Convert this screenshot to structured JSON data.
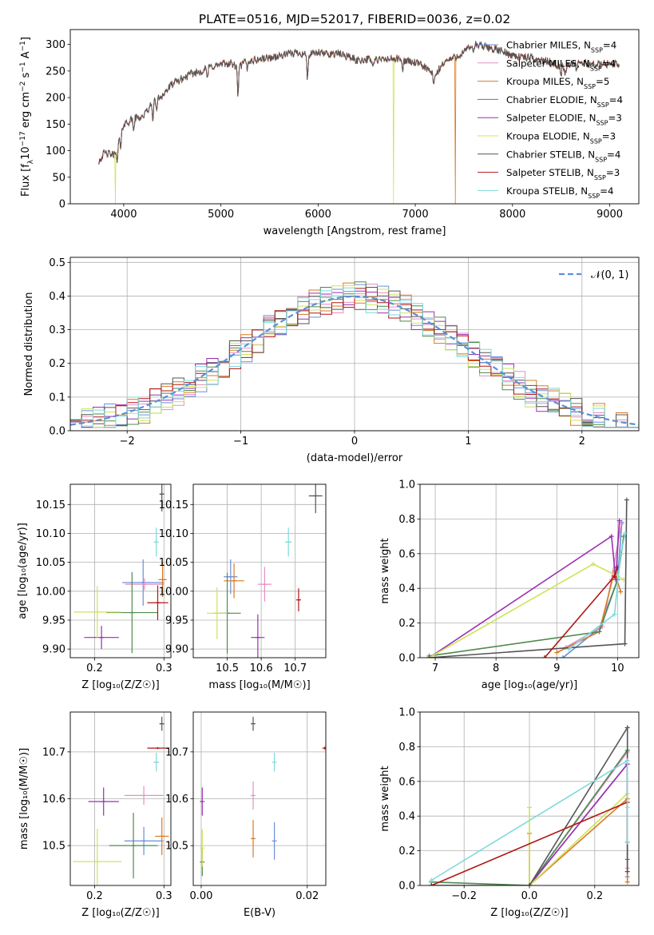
{
  "figure_title": "PLATE=0516, MJD=52017, FIBERID=0036, z=0.02",
  "models": [
    {
      "label": "Chabrier MILES, N",
      "sub": "SSP",
      "tail": "=4",
      "color": "#6a8fd6"
    },
    {
      "label": "Salpeter MILES, N",
      "sub": "SSP",
      "tail": "=4",
      "color": "#e58fc3"
    },
    {
      "label": "Kroupa MILES, N",
      "sub": "SSP",
      "tail": "=5",
      "color": "#d97a22"
    },
    {
      "label": "Chabrier ELODIE, N",
      "sub": "SSP",
      "tail": "=4",
      "color": "#4f8a4f"
    },
    {
      "label": "Salpeter ELODIE, N",
      "sub": "SSP",
      "tail": "=3",
      "color": "#9b2fb0"
    },
    {
      "label": "Kroupa ELODIE, N",
      "sub": "SSP",
      "tail": "=3",
      "color": "#cfe35a"
    },
    {
      "label": "Chabrier STELIB, N",
      "sub": "SSP",
      "tail": "=4",
      "color": "#555555"
    },
    {
      "label": "Salpeter STELIB, N",
      "sub": "SSP",
      "tail": "=3",
      "color": "#b01616"
    },
    {
      "label": "Kroupa STELIB, N",
      "sub": "SSP",
      "tail": "=4",
      "color": "#7fd9dc"
    }
  ],
  "chart_data": [
    {
      "id": "spectrum",
      "type": "line",
      "title": "PLATE=0516, MJD=52017, FIBERID=0036, z=0.02",
      "xlabel": "wavelength [Angstrom, rest frame]",
      "ylabel_parts": [
        "Flux [f",
        "λ",
        "10",
        "−17",
        " erg cm",
        "−2",
        " s",
        "−1",
        " A",
        "−1",
        "]"
      ],
      "xlim": [
        3450,
        9300
      ],
      "ylim": [
        0,
        328
      ],
      "xticks": [
        4000,
        5000,
        6000,
        7000,
        8000,
        9000
      ],
      "yticks": [
        0,
        50,
        100,
        150,
        200,
        250,
        300
      ],
      "continuum": [
        [
          3740,
          80
        ],
        [
          3800,
          95
        ],
        [
          3900,
          92
        ],
        [
          3950,
          125
        ],
        [
          4000,
          150
        ],
        [
          4100,
          160
        ],
        [
          4200,
          165
        ],
        [
          4300,
          190
        ],
        [
          4400,
          205
        ],
        [
          4500,
          225
        ],
        [
          4600,
          235
        ],
        [
          4700,
          245
        ],
        [
          4800,
          250
        ],
        [
          4900,
          258
        ],
        [
          5000,
          262
        ],
        [
          5100,
          265
        ],
        [
          5180,
          255
        ],
        [
          5250,
          268
        ],
        [
          5400,
          272
        ],
        [
          5500,
          275
        ],
        [
          5600,
          278
        ],
        [
          5700,
          282
        ],
        [
          5800,
          285
        ],
        [
          5900,
          280
        ],
        [
          6000,
          284
        ],
        [
          6100,
          282
        ],
        [
          6200,
          283
        ],
        [
          6300,
          278
        ],
        [
          6400,
          270
        ],
        [
          6500,
          272
        ],
        [
          6600,
          270
        ],
        [
          6700,
          272
        ],
        [
          6800,
          273
        ],
        [
          6900,
          270
        ],
        [
          7000,
          265
        ],
        [
          7100,
          258
        ],
        [
          7200,
          240
        ],
        [
          7300,
          268
        ],
        [
          7400,
          275
        ],
        [
          7500,
          285
        ],
        [
          7600,
          300
        ],
        [
          7700,
          296
        ],
        [
          7800,
          292
        ],
        [
          7900,
          286
        ],
        [
          8000,
          280
        ],
        [
          8100,
          276
        ],
        [
          8200,
          274
        ],
        [
          8300,
          270
        ],
        [
          8400,
          266
        ],
        [
          8500,
          258
        ],
        [
          8600,
          264
        ],
        [
          8700,
          266
        ],
        [
          8800,
          263
        ],
        [
          8900,
          262
        ],
        [
          9000,
          264
        ],
        [
          9100,
          262
        ]
      ],
      "absorption": [
        [
          3934,
          42
        ],
        [
          3969,
          35
        ],
        [
          4101,
          20
        ],
        [
          4300,
          28
        ],
        [
          4340,
          18
        ],
        [
          4861,
          18
        ],
        [
          5175,
          48
        ],
        [
          5270,
          15
        ],
        [
          5890,
          45
        ],
        [
          6563,
          14
        ],
        [
          6870,
          20
        ],
        [
          7190,
          20
        ],
        [
          7600,
          14
        ],
        [
          8498,
          18
        ],
        [
          8542,
          22
        ],
        [
          8662,
          20
        ]
      ],
      "dropouts": [
        {
          "model": 5,
          "x": 3915
        },
        {
          "model": 5,
          "x": 6775
        },
        {
          "model": 2,
          "x": 7410
        }
      ]
    },
    {
      "id": "residuals",
      "type": "histogram",
      "xlabel": "(data-model)/error",
      "ylabel": "Normed distribution",
      "xlim": [
        -2.5,
        2.5
      ],
      "ylim": [
        0,
        0.515
      ],
      "xticks": [
        -2,
        -1,
        0,
        1,
        2
      ],
      "yticks": [
        0,
        0.1,
        0.2,
        0.3,
        0.4,
        0.5
      ],
      "bin_width": 0.1,
      "reference": {
        "label": "𝒩(0, 1)",
        "mean": 0,
        "sigma": 1,
        "color": "#5b8fd9"
      }
    },
    {
      "id": "age-vs-Z",
      "type": "errorbar",
      "xlabel": "Z [log₁₀(Z/Z☉)]",
      "ylabel": "age  [log₁₀(age/yr)]",
      "xlim": [
        0.165,
        0.31
      ],
      "ylim": [
        9.885,
        10.185
      ],
      "xticks": [
        0.2,
        0.3
      ],
      "yticks": [
        9.9,
        9.95,
        10.0,
        10.05,
        10.1,
        10.15
      ],
      "points": [
        {
          "model": 0,
          "x": 0.27,
          "y": 10.015,
          "xerr": 0.03,
          "yerr": 0.04
        },
        {
          "model": 1,
          "x": 0.272,
          "y": 10.012,
          "xerr": 0.028,
          "yerr": 0.01
        },
        {
          "model": 2,
          "x": 0.298,
          "y": 10.02,
          "xerr": 0.006,
          "yerr": 0.03
        },
        {
          "model": 3,
          "x": 0.254,
          "y": 9.963,
          "xerr": 0.037,
          "yerr": 0.07
        },
        {
          "model": 4,
          "x": 0.21,
          "y": 9.92,
          "xerr": 0.025,
          "yerr": 0.02
        },
        {
          "model": 5,
          "x": 0.204,
          "y": 9.964,
          "xerr": 0.034,
          "yerr": 0.045
        },
        {
          "model": 6,
          "x": 0.297,
          "y": 10.168,
          "xerr": 0.003,
          "yerr": 0.03
        },
        {
          "model": 7,
          "x": 0.291,
          "y": 9.98,
          "xerr": 0.015,
          "yerr": 0.03
        },
        {
          "model": 8,
          "x": 0.289,
          "y": 10.085,
          "xerr": 0.003,
          "yerr": 0.025
        }
      ]
    },
    {
      "id": "age-vs-mass",
      "type": "errorbar",
      "xlabel": "mass [log₁₀(M/M☉)]",
      "ylabel": "",
      "xlim": [
        10.4,
        10.79
      ],
      "ylim": [
        9.885,
        10.185
      ],
      "xticks": [
        10.5,
        10.6,
        10.7
      ],
      "xticklabels": [
        "10.5",
        "10.6",
        "10.7"
      ],
      "yticks": [
        9.9,
        9.95,
        10.0,
        10.05,
        10.1,
        10.15
      ],
      "points": [
        {
          "model": 0,
          "x": 10.51,
          "y": 10.025,
          "xerr": 0.02,
          "yerr": 0.03
        },
        {
          "model": 1,
          "x": 10.61,
          "y": 10.012,
          "xerr": 0.02,
          "yerr": 0.03
        },
        {
          "model": 2,
          "x": 10.52,
          "y": 10.018,
          "xerr": 0.03,
          "yerr": 0.03
        },
        {
          "model": 3,
          "x": 10.5,
          "y": 9.962,
          "xerr": 0.04,
          "yerr": 0.07
        },
        {
          "model": 4,
          "x": 10.59,
          "y": 9.92,
          "xerr": 0.02,
          "yerr": 0.04
        },
        {
          "model": 5,
          "x": 10.47,
          "y": 9.962,
          "xerr": 0.03,
          "yerr": 0.045
        },
        {
          "model": 6,
          "x": 10.76,
          "y": 10.165,
          "xerr": 0.02,
          "yerr": 0.03
        },
        {
          "model": 7,
          "x": 10.71,
          "y": 9.985,
          "xerr": 0.003,
          "yerr": 0.02
        },
        {
          "model": 8,
          "x": 10.68,
          "y": 10.085,
          "xerr": 0.01,
          "yerr": 0.025
        }
      ]
    },
    {
      "id": "massweight-vs-age",
      "type": "line",
      "xlabel": "age  [log₁₀(age/yr)]",
      "ylabel": "mass weight",
      "xlim": [
        6.75,
        10.35
      ],
      "ylim": [
        0,
        1.0
      ],
      "xticks": [
        7,
        8,
        9,
        10
      ],
      "yticks": [
        0,
        0.2,
        0.4,
        0.6,
        0.8,
        1.0
      ],
      "series": [
        {
          "model": 0,
          "points": [
            [
              9.1,
              0
            ],
            [
              9.7,
              0.17
            ],
            [
              10.0,
              0.45
            ],
            [
              10.07,
              0.78
            ]
          ]
        },
        {
          "model": 1,
          "points": [
            [
              9.15,
              0.06
            ],
            [
              9.75,
              0.18
            ],
            [
              9.9,
              0.45
            ],
            [
              10.06,
              0.77
            ]
          ]
        },
        {
          "model": 2,
          "points": [
            [
              9.0,
              0.03
            ],
            [
              9.7,
              0.15
            ],
            [
              9.95,
              0.5
            ],
            [
              10.05,
              0.38
            ]
          ]
        },
        {
          "model": 3,
          "points": [
            [
              6.9,
              0.01
            ],
            [
              9.7,
              0.15
            ],
            [
              10.0,
              0.45
            ],
            [
              10.1,
              0.7
            ]
          ]
        },
        {
          "model": 4,
          "points": [
            [
              6.9,
              0
            ],
            [
              9.9,
              0.7
            ],
            [
              9.97,
              0.45
            ],
            [
              10.03,
              0.79
            ]
          ]
        },
        {
          "model": 5,
          "points": [
            [
              6.9,
              0
            ],
            [
              9.6,
              0.54
            ],
            [
              10.0,
              0.47
            ],
            [
              10.1,
              0.45
            ]
          ]
        },
        {
          "model": 6,
          "points": [
            [
              6.9,
              0
            ],
            [
              10.12,
              0.08
            ],
            [
              10.15,
              0.91
            ]
          ]
        },
        {
          "model": 7,
          "points": [
            [
              8.8,
              0
            ],
            [
              9.95,
              0.47
            ],
            [
              10.0,
              0.52
            ]
          ]
        },
        {
          "model": 8,
          "points": [
            [
              9.2,
              0.05
            ],
            [
              9.95,
              0.25
            ],
            [
              10.05,
              0.6
            ],
            [
              10.13,
              0.72
            ]
          ]
        }
      ]
    },
    {
      "id": "mass-vs-Z",
      "type": "errorbar",
      "xlabel": "Z [log₁₀(Z/Z☉)]",
      "ylabel": "mass [log₁₀(M/M☉)]",
      "xlim": [
        0.165,
        0.31
      ],
      "ylim": [
        10.415,
        10.785
      ],
      "xticks": [
        0.2,
        0.3
      ],
      "yticks": [
        10.5,
        10.6,
        10.7
      ],
      "points": [
        {
          "model": 0,
          "x": 0.271,
          "y": 10.51,
          "xerr": 0.028,
          "yerr": 0.03
        },
        {
          "model": 1,
          "x": 0.271,
          "y": 10.607,
          "xerr": 0.028,
          "yerr": 0.02
        },
        {
          "model": 2,
          "x": 0.297,
          "y": 10.52,
          "xerr": 0.01,
          "yerr": 0.04
        },
        {
          "model": 3,
          "x": 0.256,
          "y": 10.5,
          "xerr": 0.035,
          "yerr": 0.07
        },
        {
          "model": 4,
          "x": 0.213,
          "y": 10.594,
          "xerr": 0.022,
          "yerr": 0.03
        },
        {
          "model": 5,
          "x": 0.204,
          "y": 10.466,
          "xerr": 0.035,
          "yerr": 0.07
        },
        {
          "model": 6,
          "x": 0.297,
          "y": 10.76,
          "xerr": 0.003,
          "yerr": 0.015
        },
        {
          "model": 7,
          "x": 0.291,
          "y": 10.708,
          "xerr": 0.015,
          "yerr": 0.002
        },
        {
          "model": 8,
          "x": 0.289,
          "y": 10.678,
          "xerr": 0.004,
          "yerr": 0.02
        }
      ]
    },
    {
      "id": "mass-vs-ebv",
      "type": "errorbar",
      "xlabel": "E(B-V)",
      "ylabel": "",
      "xlim": [
        -0.0015,
        0.0235
      ],
      "ylim": [
        10.415,
        10.785
      ],
      "xticks": [
        0.0,
        0.02
      ],
      "xticklabels": [
        "0.00",
        "0.02"
      ],
      "yticks": [
        10.5,
        10.6,
        10.7
      ],
      "points": [
        {
          "model": 0,
          "x": 0.0138,
          "y": 10.51,
          "xerr": 0,
          "yerr": 0.04
        },
        {
          "model": 1,
          "x": 0.0098,
          "y": 10.607,
          "xerr": 0,
          "yerr": 0.03
        },
        {
          "model": 2,
          "x": 0.0098,
          "y": 10.515,
          "xerr": 0,
          "yerr": 0.04
        },
        {
          "model": 3,
          "x": 0.0002,
          "y": 10.465,
          "xerr": 0,
          "yerr": 0.03
        },
        {
          "model": 4,
          "x": 0.0002,
          "y": 10.594,
          "xerr": 0,
          "yerr": 0.03
        },
        {
          "model": 5,
          "x": 0.0002,
          "y": 10.495,
          "xerr": 0,
          "yerr": 0.04
        },
        {
          "model": 6,
          "x": 0.0098,
          "y": 10.76,
          "xerr": 0,
          "yerr": 0.015
        },
        {
          "model": 7,
          "x": 0.0233,
          "y": 10.708,
          "xerr": 0,
          "yerr": 0.003
        },
        {
          "model": 8,
          "x": 0.0138,
          "y": 10.678,
          "xerr": 0,
          "yerr": 0.02
        }
      ]
    },
    {
      "id": "massweight-vs-Z",
      "type": "line",
      "xlabel": "Z [log₁₀(Z/Z☉)]",
      "ylabel": "mass weight",
      "xlim": [
        -0.335,
        0.335
      ],
      "ylim": [
        0,
        1.0
      ],
      "xticks": [
        -0.2,
        0.0,
        0.2
      ],
      "xticklabels": [
        "−0.2",
        "0.0",
        "0.2"
      ],
      "yticks": [
        0,
        0.2,
        0.4,
        0.6,
        0.8,
        1.0
      ],
      "series": [
        {
          "model": 0,
          "points": [
            [
              0,
              0
            ],
            [
              0.3,
              0.7
            ],
            [
              0.3,
              0.05
            ]
          ]
        },
        {
          "model": 1,
          "points": [
            [
              0,
              0
            ],
            [
              0.3,
              0.77
            ],
            [
              0.3,
              0.1
            ]
          ]
        },
        {
          "model": 2,
          "points": [
            [
              0,
              0.3
            ],
            [
              0,
              0
            ],
            [
              0.3,
              0.5
            ],
            [
              0.3,
              0.02
            ]
          ]
        },
        {
          "model": 3,
          "points": [
            [
              -0.3,
              0.02
            ],
            [
              0,
              0
            ],
            [
              0.3,
              0.78
            ],
            [
              0.3,
              0.15
            ]
          ]
        },
        {
          "model": 4,
          "points": [
            [
              0,
              0
            ],
            [
              0.3,
              0.7
            ],
            [
              0.3,
              0.25
            ]
          ]
        },
        {
          "model": 5,
          "points": [
            [
              0,
              0.45
            ],
            [
              0,
              0
            ],
            [
              0.3,
              0.53
            ],
            [
              0.3,
              0.45
            ]
          ]
        },
        {
          "model": 6,
          "points": [
            [
              -0.3,
              0
            ],
            [
              0,
              0
            ],
            [
              0.3,
              0.91
            ],
            [
              0.3,
              0.08
            ]
          ]
        },
        {
          "model": 7,
          "points": [
            [
              -0.3,
              0
            ],
            [
              0.3,
              0.48
            ]
          ]
        },
        {
          "model": 8,
          "points": [
            [
              -0.3,
              0.03
            ],
            [
              0.3,
              0.72
            ],
            [
              0.3,
              0.25
            ]
          ]
        }
      ]
    }
  ]
}
